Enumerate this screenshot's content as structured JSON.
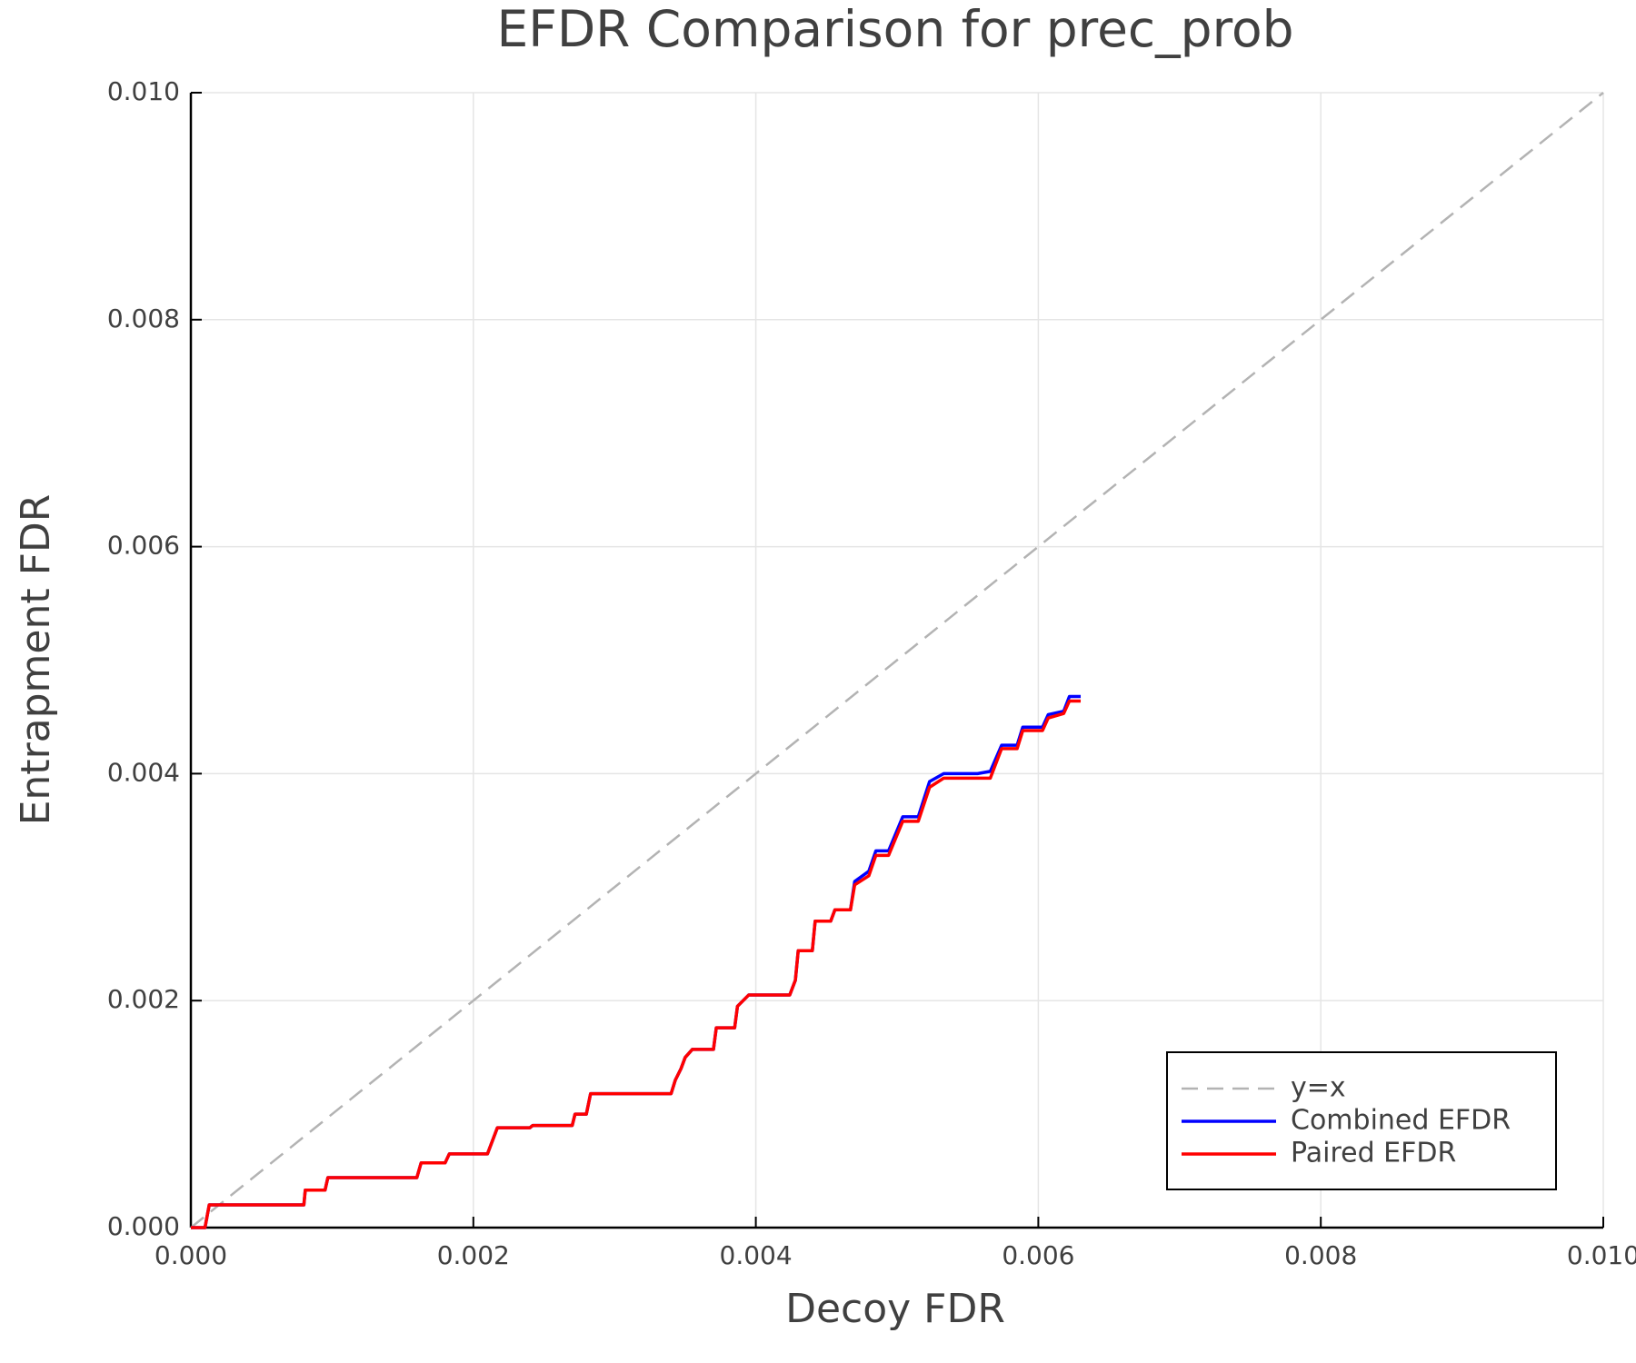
{
  "chart_data": {
    "type": "line",
    "title": "EFDR Comparison for prec_prob",
    "x_label": "Decoy FDR",
    "y_label": "Entrapment FDR",
    "xlim": [
      0,
      0.01
    ],
    "ylim": [
      0,
      0.01
    ],
    "grid": true,
    "legend": "lower right",
    "xticks": [
      {
        "value": 0,
        "label": "0.000"
      },
      {
        "value": 0.002,
        "label": "0.002"
      },
      {
        "value": 0.004,
        "label": "0.004"
      },
      {
        "value": 0.006,
        "label": "0.006"
      },
      {
        "value": 0.008,
        "label": "0.008"
      },
      {
        "value": 0.01,
        "label": "0.010"
      }
    ],
    "yticks": [
      {
        "value": 0,
        "label": "0.000"
      },
      {
        "value": 0.002,
        "label": "0.002"
      },
      {
        "value": 0.004,
        "label": "0.004"
      },
      {
        "value": 0.006,
        "label": "0.006"
      },
      {
        "value": 0.008,
        "label": "0.008"
      },
      {
        "value": 0.01,
        "label": "0.010"
      }
    ],
    "x": [
      0,
      0.0001,
      0.00013,
      0.0008,
      0.00081,
      0.00095,
      0.00097,
      0.0016,
      0.00163,
      0.0018,
      0.00183,
      0.0021,
      0.00217,
      0.0024,
      0.00242,
      0.0027,
      0.00272,
      0.0028,
      0.00283,
      0.0034,
      0.00343,
      0.00347,
      0.0035,
      0.00355,
      0.0037,
      0.00372,
      0.00385,
      0.00387,
      0.00395,
      0.00424,
      0.00428,
      0.0043,
      0.0044,
      0.00442,
      0.00453,
      0.00456,
      0.00467,
      0.0047,
      0.0048,
      0.00485,
      0.00494,
      0.00504,
      0.00515,
      0.00523,
      0.00533,
      0.00557,
      0.00566,
      0.00574,
      0.00585,
      0.00589,
      0.00603,
      0.00607,
      0.00618,
      0.00622,
      0.0063
    ],
    "series": [
      {
        "name": "y=x",
        "color": "#b3b3b3",
        "dash": true,
        "x": [
          0,
          0.01
        ],
        "values": [
          0,
          0.01
        ]
      },
      {
        "name": "Combined EFDR",
        "color": "#0000ff",
        "values": [
          0,
          0,
          0.0002,
          0.0002,
          0.00033,
          0.00033,
          0.00044,
          0.00044,
          0.00057,
          0.00057,
          0.00065,
          0.00065,
          0.00088,
          0.00088,
          0.0009,
          0.0009,
          0.001,
          0.001,
          0.00118,
          0.00118,
          0.0013,
          0.0014,
          0.0015,
          0.00157,
          0.00157,
          0.00176,
          0.00176,
          0.00195,
          0.00205,
          0.00205,
          0.00218,
          0.00244,
          0.00244,
          0.0027,
          0.0027,
          0.0028,
          0.0028,
          0.00305,
          0.00314,
          0.00332,
          0.00332,
          0.00362,
          0.00362,
          0.00393,
          0.004,
          0.004,
          0.00402,
          0.00425,
          0.00425,
          0.00441,
          0.00441,
          0.00452,
          0.00455,
          0.00468,
          0.00468
        ]
      },
      {
        "name": "Paired EFDR",
        "color": "#ff0000",
        "values": [
          0,
          0,
          0.0002,
          0.0002,
          0.00033,
          0.00033,
          0.00044,
          0.00044,
          0.00057,
          0.00057,
          0.00065,
          0.00065,
          0.00088,
          0.00088,
          0.0009,
          0.0009,
          0.001,
          0.001,
          0.00118,
          0.00118,
          0.0013,
          0.0014,
          0.0015,
          0.00157,
          0.00157,
          0.00176,
          0.00176,
          0.00195,
          0.00205,
          0.00205,
          0.00218,
          0.00244,
          0.00244,
          0.0027,
          0.0027,
          0.0028,
          0.0028,
          0.00302,
          0.0031,
          0.00328,
          0.00328,
          0.00358,
          0.00358,
          0.00388,
          0.00396,
          0.00396,
          0.00396,
          0.00422,
          0.00422,
          0.00438,
          0.00438,
          0.00449,
          0.00453,
          0.00464,
          0.00464
        ]
      }
    ]
  }
}
